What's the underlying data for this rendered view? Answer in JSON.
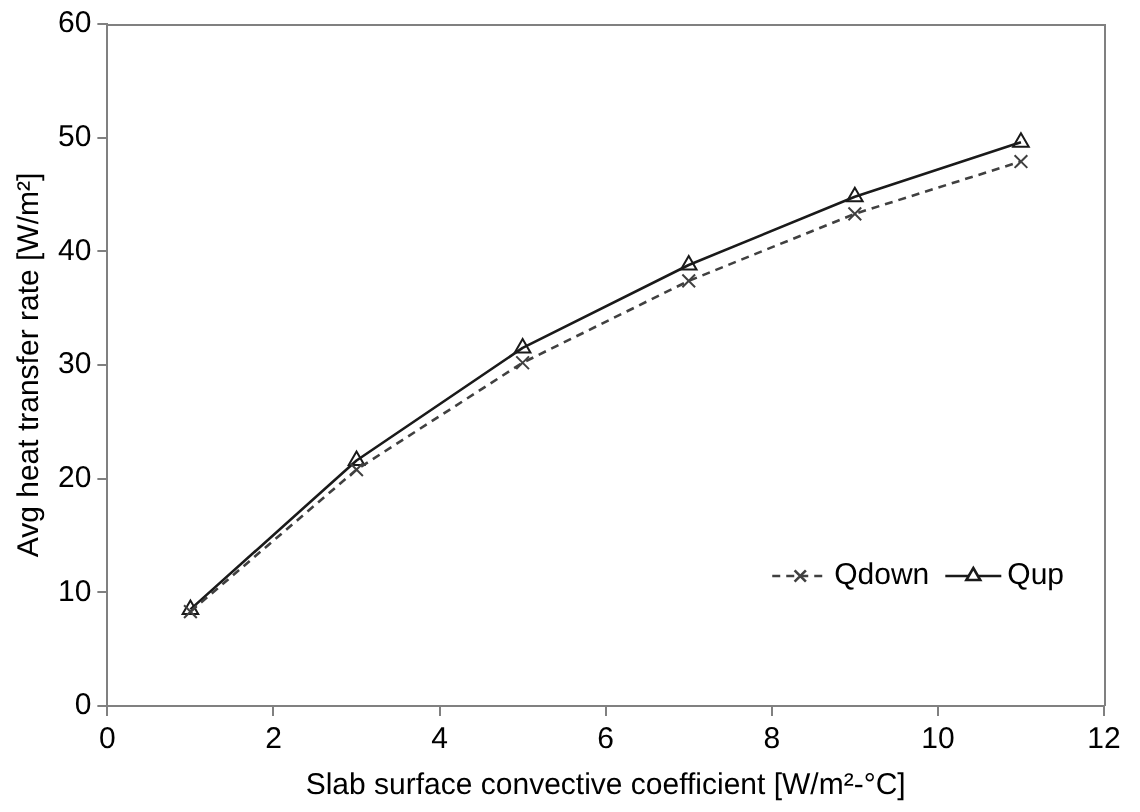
{
  "chart_data": {
    "type": "line",
    "xlabel": "Slab surface convective coefficient [W/m²-°C]",
    "ylabel": "Avg heat transfer rate [W/m²]",
    "x": [
      1,
      3,
      5,
      7,
      9,
      11
    ],
    "series": [
      {
        "name": "Qdown",
        "color": "#404040",
        "marker": "cross",
        "line_style": "dashed",
        "values": [
          8.3,
          20.8,
          30.2,
          37.4,
          43.3,
          47.9
        ]
      },
      {
        "name": "Qup",
        "color": "#1a1a1a",
        "marker": "triangle",
        "line_style": "solid",
        "values": [
          8.5,
          21.6,
          31.5,
          38.8,
          44.8,
          49.6
        ]
      }
    ],
    "xlim": [
      0,
      12
    ],
    "xticks": [
      0,
      2,
      4,
      6,
      8,
      10,
      12
    ],
    "ylim": [
      0,
      60
    ],
    "yticks": [
      0,
      10,
      20,
      30,
      40,
      50,
      60
    ],
    "grid": false,
    "legend": "bottom right"
  }
}
